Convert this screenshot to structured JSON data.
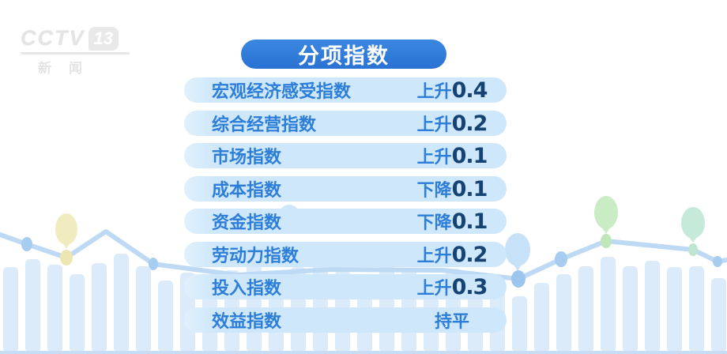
{
  "logo": {
    "network": "CCTV",
    "channel": "13",
    "name": "新闻"
  },
  "title": "分项指数",
  "rows": [
    {
      "label": "宏观经济感受指数",
      "trend": "上升",
      "value": "0.4"
    },
    {
      "label": "综合经营指数",
      "trend": "上升",
      "value": "0.2"
    },
    {
      "label": "市场指数",
      "trend": "上升",
      "value": "0.1"
    },
    {
      "label": "成本指数",
      "trend": "下降",
      "value": "0.1"
    },
    {
      "label": "资金指数",
      "trend": "下降",
      "value": "0.1"
    },
    {
      "label": "劳动力指数",
      "trend": "上升",
      "value": "0.2"
    },
    {
      "label": "投入指数",
      "trend": "上升",
      "value": "0.3"
    },
    {
      "label": "效益指数",
      "trend": "持平",
      "value": ""
    }
  ],
  "colors": {
    "accent_blue": "#2d7ed8",
    "value_navy": "#154374",
    "row_pill": "#cee7fa",
    "title_pill": "#2e7cd9",
    "deco_bar": "#dcebfa",
    "deco_line": "#bdd9f3"
  },
  "chart_data": {
    "type": "table",
    "title": "分项指数",
    "rows": [
      {
        "index": "宏观经济感受指数",
        "direction": "上升",
        "change": 0.4
      },
      {
        "index": "综合经营指数",
        "direction": "上升",
        "change": 0.2
      },
      {
        "index": "市场指数",
        "direction": "上升",
        "change": 0.1
      },
      {
        "index": "成本指数",
        "direction": "下降",
        "change": 0.1
      },
      {
        "index": "资金指数",
        "direction": "下降",
        "change": 0.1
      },
      {
        "index": "劳动力指数",
        "direction": "上升",
        "change": 0.2
      },
      {
        "index": "投入指数",
        "direction": "上升",
        "change": 0.3
      },
      {
        "index": "效益指数",
        "direction": "持平",
        "change": 0
      }
    ]
  }
}
